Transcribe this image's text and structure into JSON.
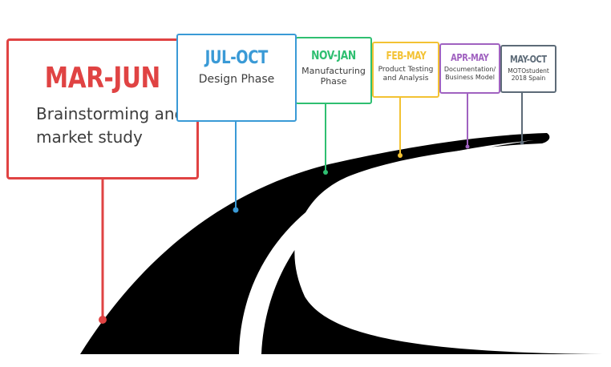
{
  "milestones": [
    {
      "period": "MAR-JUN",
      "description": "Brainstorming and market study",
      "desc_lines": [
        "Brainstorming and",
        "market study"
      ],
      "color": "#e04343"
    },
    {
      "period": "JUL-OCT",
      "description": "Design Phase",
      "desc_lines": [
        "Design Phase"
      ],
      "color": "#3a9ad6"
    },
    {
      "period": "NOV-JAN",
      "description": "Manufacturing Phase",
      "desc_lines": [
        "Manufacturing",
        "Phase"
      ],
      "color": "#2fbf71"
    },
    {
      "period": "FEB-MAY",
      "description": "Product Testing and Analysis",
      "desc_lines": [
        "Product Testing",
        "and Analysis"
      ],
      "color": "#f3c233"
    },
    {
      "period": "APR-MAY",
      "description": "Documentation/ Business Model",
      "desc_lines": [
        "Documentation/",
        "Business Model"
      ],
      "color": "#a062c0"
    },
    {
      "period": "MAY-OCT",
      "description": "MOTOstudent 2018 Spain",
      "desc_lines": [
        "MOTOstudent",
        "2018 Spain"
      ],
      "color": "#5d6b78"
    }
  ]
}
